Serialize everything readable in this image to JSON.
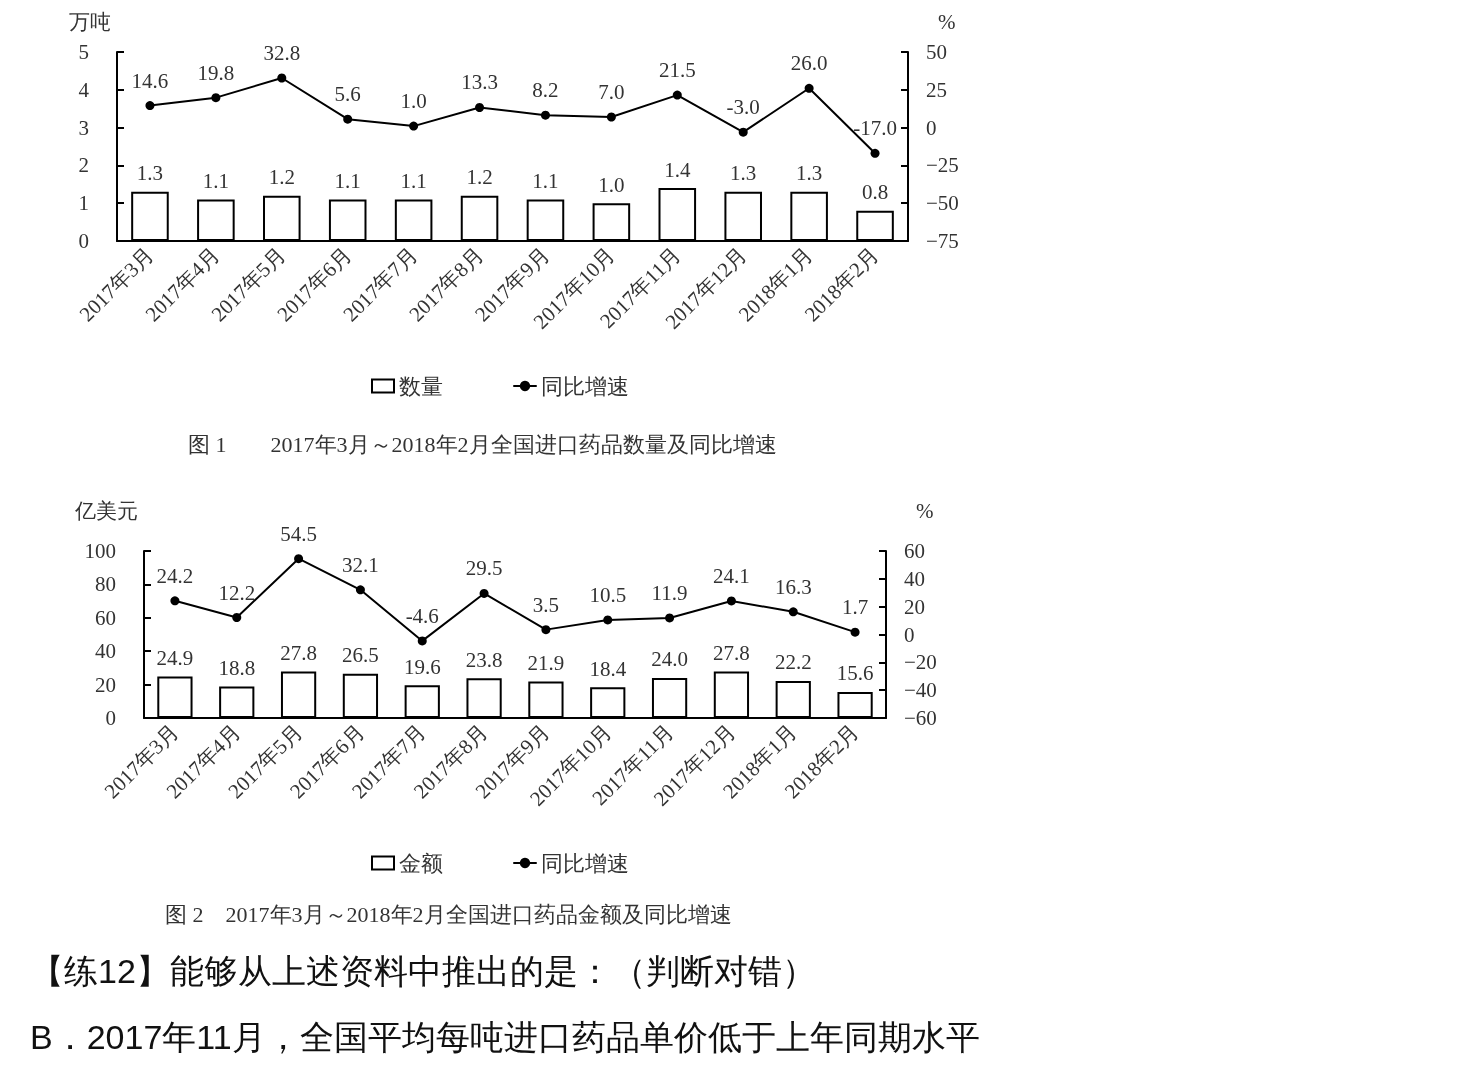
{
  "chart_data": [
    {
      "type": "bar",
      "title": "图 1　　2017年3月～2018年2月全国进口药品数量及同比增速",
      "ylabel": "万吨",
      "y2label": "%",
      "categories": [
        "2017年3月",
        "2017年4月",
        "2017年5月",
        "2017年6月",
        "2017年7月",
        "2017年8月",
        "2017年9月",
        "2017年10月",
        "2017年11月",
        "2017年12月",
        "2018年1月",
        "2018年2月"
      ],
      "series": [
        {
          "name": "数量",
          "color": "#ffffff",
          "values": [
            1.3,
            1.1,
            1.2,
            1.1,
            1.1,
            1.2,
            1.1,
            1.0,
            1.4,
            1.3,
            1.3,
            0.8
          ],
          "value_labels": [
            "1.3",
            "1.1",
            "1.2",
            "1.1",
            "1.1",
            "1.2",
            "1.1",
            "1.0",
            "1.4",
            "1.3",
            "1.3",
            "0.8"
          ]
        },
        {
          "name": "同比增速",
          "type": "line",
          "axis": "y2",
          "color": "#000000",
          "values": [
            14.6,
            19.8,
            32.8,
            5.6,
            1.0,
            13.3,
            8.2,
            7.0,
            21.5,
            -3.0,
            26.0,
            -17.0
          ],
          "value_labels": [
            "14.6",
            "19.8",
            "32.8",
            "5.6",
            "1.0",
            "13.3",
            "8.2",
            "7.0",
            "21.5",
            "-3.0",
            "26.0",
            "-17.0"
          ]
        }
      ],
      "ylim": [
        0,
        5
      ],
      "yticks": [
        0,
        1,
        2,
        3,
        4,
        5
      ],
      "y2lim": [
        -75,
        50
      ],
      "y2ticks": [
        -75,
        -50,
        -25,
        0,
        25,
        50
      ],
      "legend": "bottom",
      "marker": "circle"
    },
    {
      "type": "bar",
      "title": "图 2　2017年3月～2018年2月全国进口药品金额及同比增速",
      "ylabel": "亿美元",
      "y2label": "%",
      "categories": [
        "2017年3月",
        "2017年4月",
        "2017年5月",
        "2017年6月",
        "2017年7月",
        "2017年8月",
        "2017年9月",
        "2017年10月",
        "2017年11月",
        "2017年12月",
        "2018年1月",
        "2018年2月"
      ],
      "series": [
        {
          "name": "金额",
          "color": "#ffffff",
          "values": [
            24.9,
            18.8,
            27.8,
            26.5,
            19.6,
            23.8,
            21.9,
            18.4,
            24.0,
            27.8,
            22.2,
            15.6
          ],
          "value_labels": [
            "24.9",
            "18.8",
            "27.8",
            "26.5",
            "19.6",
            "23.8",
            "21.9",
            "18.4",
            "24.0",
            "27.8",
            "22.2",
            "15.6"
          ]
        },
        {
          "name": "同比增速",
          "type": "line",
          "axis": "y2",
          "color": "#000000",
          "values": [
            24.2,
            12.2,
            54.5,
            32.1,
            -4.6,
            29.5,
            3.5,
            10.5,
            11.9,
            24.1,
            16.3,
            1.7
          ],
          "value_labels": [
            "24.2",
            "12.2",
            "54.5",
            "32.1",
            "-4.6",
            "29.5",
            "3.5",
            "10.5",
            "11.9",
            "24.1",
            "16.3",
            "1.7"
          ]
        }
      ],
      "ylim": [
        0,
        100
      ],
      "yticks": [
        0,
        20,
        40,
        60,
        80,
        100
      ],
      "y2lim": [
        -60,
        60
      ],
      "y2ticks": [
        -60,
        -40,
        -20,
        0,
        20,
        40,
        60
      ],
      "legend": "bottom",
      "marker": "circle",
      "annotations": [
        "【练12】能够从上述资料中推出的是：（判断对错）",
        "B．2017年11月，全国平均每吨进口药品单价低于上年同期水平"
      ]
    }
  ]
}
